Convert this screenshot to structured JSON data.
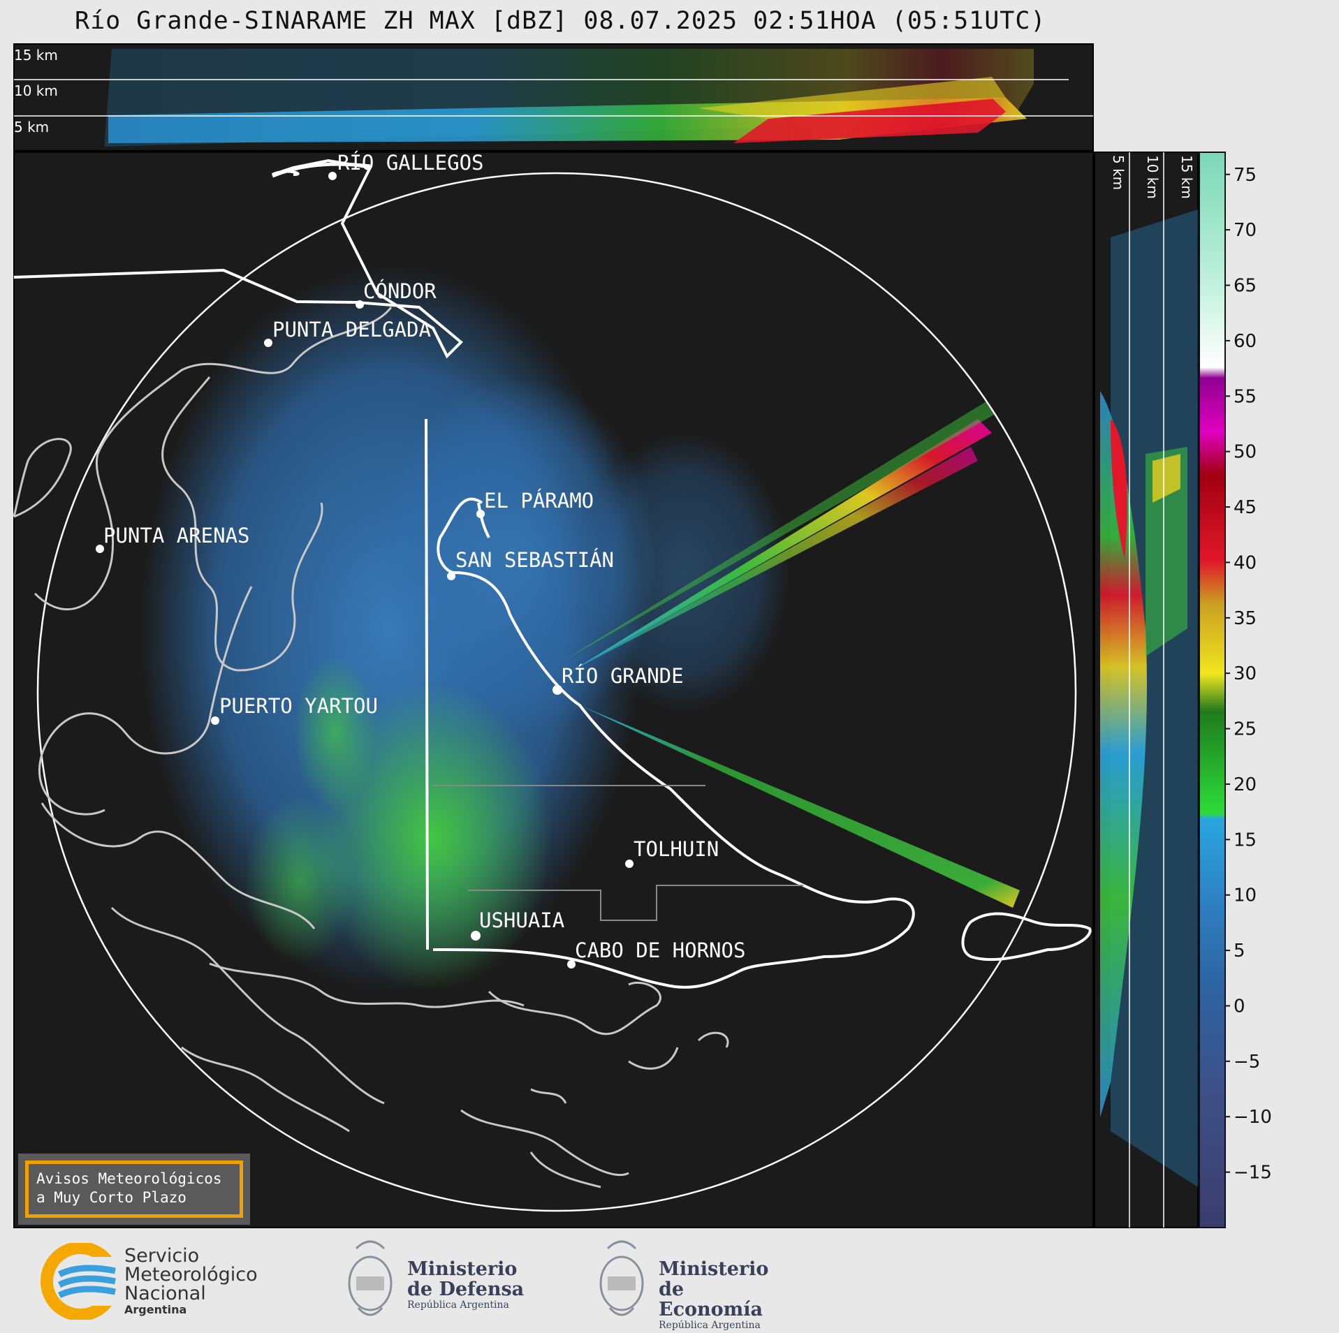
{
  "title": "Río Grande-SINARAME ZH MAX [dBZ] 08.07.2025 02:51HOA (05:51UTC)",
  "top_panel_heights": [
    "15 km",
    "10 km",
    "5 km"
  ],
  "side_panel_heights": [
    "5 km",
    "10 km",
    "15 km"
  ],
  "cities": [
    {
      "name": "RÍO GALLEGOS"
    },
    {
      "name": "CÓNDOR"
    },
    {
      "name": "PUNTA DELGADA"
    },
    {
      "name": "EL PÁRAMO"
    },
    {
      "name": "PUNTA ARENAS"
    },
    {
      "name": "SAN SEBASTIÁN"
    },
    {
      "name": "RÍO GRANDE"
    },
    {
      "name": "PUERTO YARTOU"
    },
    {
      "name": "TOLHUIN"
    },
    {
      "name": "USHUAIA"
    },
    {
      "name": "CABO DE HORNOS"
    }
  ],
  "colorbar": {
    "ticks": [
      "75",
      "70",
      "65",
      "60",
      "55",
      "50",
      "45",
      "40",
      "35",
      "30",
      "25",
      "20",
      "15",
      "10",
      "5",
      "0",
      "−5",
      "−10",
      "−15"
    ],
    "range": [
      -20,
      77
    ]
  },
  "alert_box": {
    "text": "Avisos Meteorológicos\na Muy Corto Plazo"
  },
  "logos": {
    "smn": {
      "line1": "Servicio",
      "line2": "Meteorológico",
      "line3": "Nacional",
      "line4": "Argentina"
    },
    "defensa": {
      "title1": "Ministerio",
      "title2": "de Defensa",
      "sub": "República Argentina"
    },
    "economia": {
      "title1": "Ministerio",
      "title2": "de Economía",
      "sub": "República Argentina"
    }
  },
  "colors": {
    "background": "#1b1b1b",
    "coast": "#cccccc",
    "border": "#ffffff",
    "accent": "#f0a000"
  }
}
